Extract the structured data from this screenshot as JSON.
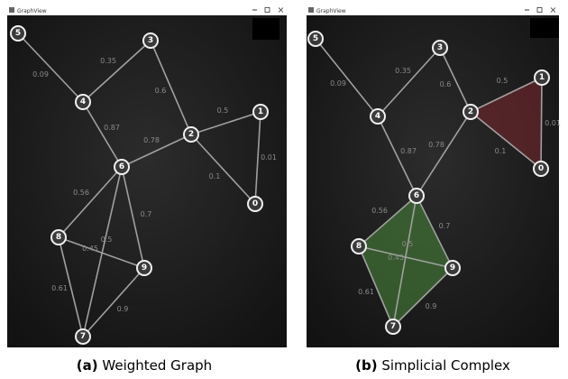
{
  "panels": [
    {
      "window_title": "GraphView",
      "caption_label": "(a)",
      "caption_text": "Weighted Graph",
      "nodes": [
        0,
        1,
        2,
        3,
        4,
        5,
        6,
        7,
        8,
        9
      ],
      "edge_weights": [
        0.09,
        0.35,
        0.6,
        0.5,
        0.01,
        0.1,
        0.87,
        0.78,
        0.56,
        0.7,
        0.5,
        0.45,
        0.61,
        0.9
      ]
    },
    {
      "window_title": "GraphView",
      "caption_label": "(b)",
      "caption_text": "Simplicial Complex",
      "nodes": [
        0,
        1,
        2,
        3,
        4,
        5,
        6,
        7,
        8,
        9
      ],
      "edge_weights": [
        0.09,
        0.35,
        0.6,
        0.5,
        0.01,
        0.1,
        0.87,
        0.78,
        0.56,
        0.7,
        0.5,
        0.45,
        0.61,
        0.9
      ]
    }
  ]
}
